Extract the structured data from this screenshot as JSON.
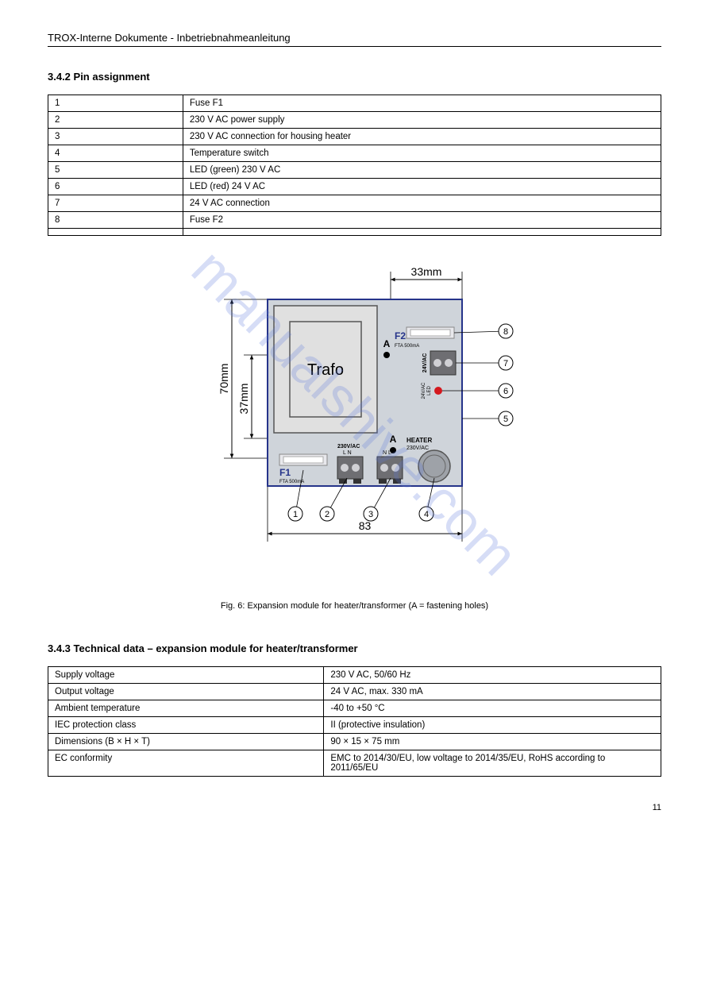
{
  "header": "TROX-Interne Dokumente - Inbetriebnahmeanleitung",
  "section1": {
    "title": "3.4.2 Pin assignment",
    "rows": [
      [
        "1",
        "Fuse F1"
      ],
      [
        "2",
        "230 V AC power supply"
      ],
      [
        "3",
        "230 V AC connection for housing heater"
      ],
      [
        "4",
        "Temperature switch"
      ],
      [
        "5",
        "LED (green) 230 V AC"
      ],
      [
        "6",
        "LED (red) 24 V AC"
      ],
      [
        "7",
        "24 V AC connection"
      ],
      [
        "8",
        "Fuse F2"
      ],
      [
        "",
        ""
      ]
    ]
  },
  "figure": {
    "caption": "Fig. 6: Expansion module for heater/transformer (A = fastening holes)",
    "dim_top": "33mm",
    "dim_left_outer": "70mm",
    "dim_left_inner": "37mm",
    "dim_bottom": "83",
    "trafo_label": "Trafo",
    "f1_label": "F1",
    "f1_sub": "FTA 500mA",
    "f2_label": "F2",
    "f2_sub": "FTA 500mA",
    "a_label": "A",
    "v230": "230V/AC",
    "LN": "L  N",
    "NL": "N  L",
    "heater": "HEATER",
    "heater_sub": "230V/AC",
    "v24": "24V/AC",
    "led_label": "LED",
    "led_sub": "24V/AC",
    "callouts": [
      "1",
      "2",
      "3",
      "4",
      "5",
      "6",
      "7",
      "8"
    ],
    "colors": {
      "board_bg": "#cfd4da",
      "board_border": "#26348a",
      "trafo_fill": "#e0e0e0",
      "fuse_fill": "#e8e8ec",
      "terminal_fill": "#6e6e72",
      "terminal_hole": "#d0d0d4",
      "temp_switch": "#9ea2a8",
      "led_red": "#d4181e",
      "hole_black": "#000000",
      "dim_line": "#000000",
      "callout_stroke": "#000000"
    }
  },
  "section2": {
    "title": "3.4.3 Technical data – expansion module for heater/transformer",
    "rows": [
      [
        "Supply voltage",
        "230 V AC, 50/60 Hz"
      ],
      [
        "Output voltage",
        "24 V AC, max. 330 mA"
      ],
      [
        "Ambient temperature",
        "-40 to +50 °C"
      ],
      [
        "IEC protection class",
        "II (protective insulation)"
      ],
      [
        "Dimensions (B × H × T)",
        "90 × 15 × 75 mm"
      ],
      [
        "EC conformity",
        "EMC to 2014/30/EU, low voltage to 2014/35/EU, RoHS according to 2011/65/EU"
      ]
    ]
  },
  "page_number": "11",
  "watermark": "manualshive.com"
}
